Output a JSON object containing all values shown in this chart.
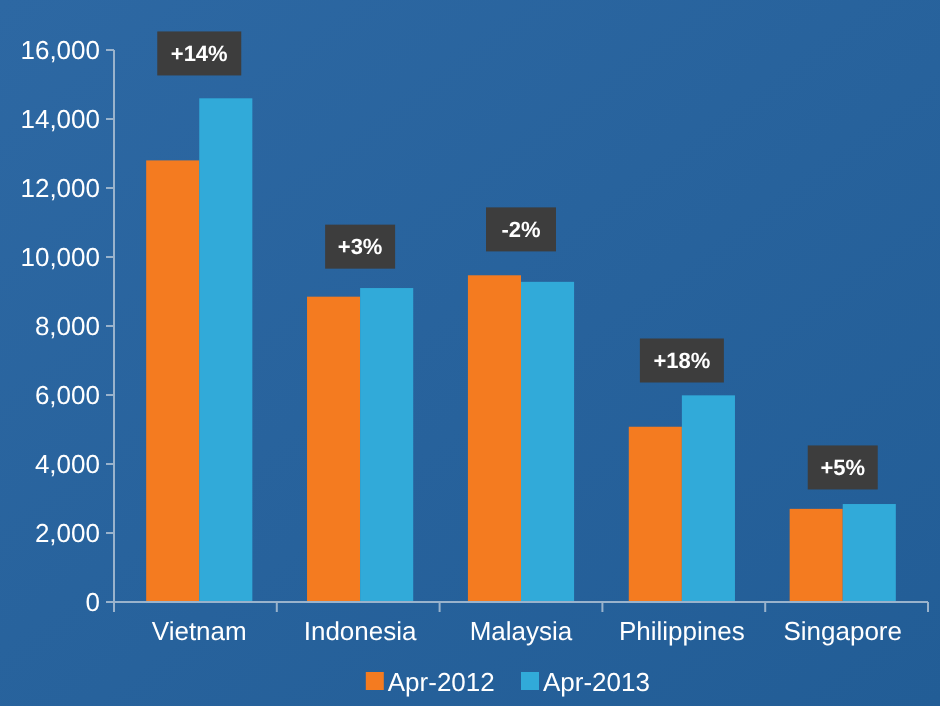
{
  "chart_data": {
    "type": "bar",
    "categories": [
      "Vietnam",
      "Indonesia",
      "Malaysia",
      "Philippines",
      "Singapore"
    ],
    "series": [
      {
        "name": "Apr-2012",
        "color": "#f47b20",
        "values": [
          12800,
          8850,
          9470,
          5080,
          2700
        ]
      },
      {
        "name": "Apr-2013",
        "color": "#31aad9",
        "values": [
          14600,
          9100,
          9280,
          5990,
          2840
        ]
      }
    ],
    "ylim": [
      0,
      16000
    ],
    "yticks": [
      {
        "value": 0,
        "label": "0"
      },
      {
        "value": 2000,
        "label": "2,000"
      },
      {
        "value": 4000,
        "label": "4,000"
      },
      {
        "value": 6000,
        "label": "6,000"
      },
      {
        "value": 8000,
        "label": "8,000"
      },
      {
        "value": 10000,
        "label": "10,000"
      },
      {
        "value": 12000,
        "label": "12,000"
      },
      {
        "value": 14000,
        "label": "14,000"
      },
      {
        "value": 16000,
        "label": "16,000"
      }
    ],
    "annotations": [
      {
        "text": "+14%",
        "x": "Vietnam",
        "y": 15900
      },
      {
        "text": "+3%",
        "x": "Indonesia",
        "y": 10300
      },
      {
        "text": "-2%",
        "x": "Malaysia",
        "y": 10800
      },
      {
        "text": "+18%",
        "x": "Philippines",
        "y": 7000
      },
      {
        "text": "+5%",
        "x": "Singapore",
        "y": 3900
      }
    ],
    "legend": "bottom",
    "grid": false
  }
}
